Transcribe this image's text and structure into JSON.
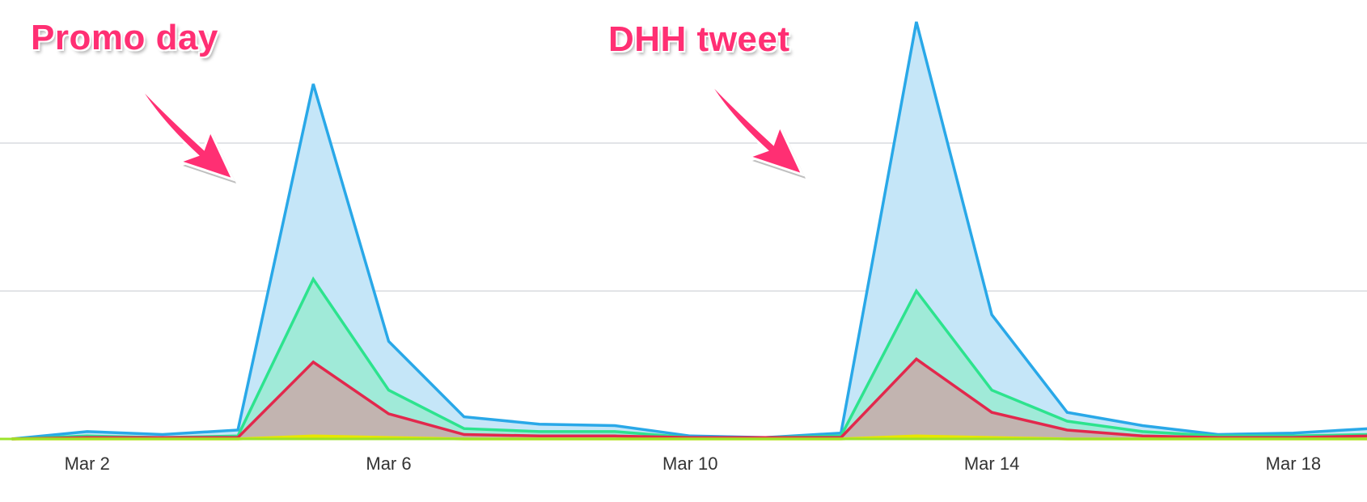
{
  "chart_data": {
    "type": "area",
    "x_labels": [
      "Mar 1",
      "Mar 2",
      "Mar 3",
      "Mar 4",
      "Mar 5",
      "Mar 6",
      "Mar 7",
      "Mar 8",
      "Mar 9",
      "Mar 10",
      "Mar 11",
      "Mar 12",
      "Mar 13",
      "Mar 14",
      "Mar 15",
      "Mar 16",
      "Mar 17",
      "Mar 18",
      "Mar 19"
    ],
    "xticks": [
      "Mar 2",
      "Mar 6",
      "Mar 10",
      "Mar 14",
      "Mar 18"
    ],
    "ylim": [
      0,
      280
    ],
    "grid": true,
    "series": [
      {
        "color": "#29a8e8",
        "fill": "#c5e6f8",
        "values": [
          0,
          5,
          3,
          6,
          240,
          66,
          15,
          10,
          9,
          2,
          1,
          4,
          282,
          84,
          18,
          9,
          3,
          4,
          7
        ]
      },
      {
        "color": "#2de38e",
        "fill": "#a0ead8",
        "values": [
          0,
          2,
          1,
          2,
          108,
          33,
          7,
          5,
          5,
          1,
          1,
          2,
          100,
          33,
          12,
          5,
          2,
          2,
          3
        ]
      },
      {
        "color": "#e2284c",
        "fill": "#c2b4b0",
        "values": [
          0,
          1,
          1,
          1,
          52,
          17,
          3,
          2,
          2,
          1,
          1,
          1,
          54,
          18,
          6,
          2,
          1,
          1,
          2
        ]
      },
      {
        "color": "#e8e600",
        "fill": "#e8e600",
        "values": [
          0,
          0,
          0,
          0,
          2,
          1,
          0,
          0,
          0,
          0,
          0,
          0,
          2,
          1,
          0,
          0,
          0,
          0,
          0
        ]
      }
    ],
    "annotations": [
      {
        "text": "Promo day",
        "x": "Mar 5"
      },
      {
        "text": "DHH tweet",
        "x": "Mar 13"
      }
    ],
    "baseline_color": "#9be32a",
    "grid_color": "#d9dcdf"
  }
}
